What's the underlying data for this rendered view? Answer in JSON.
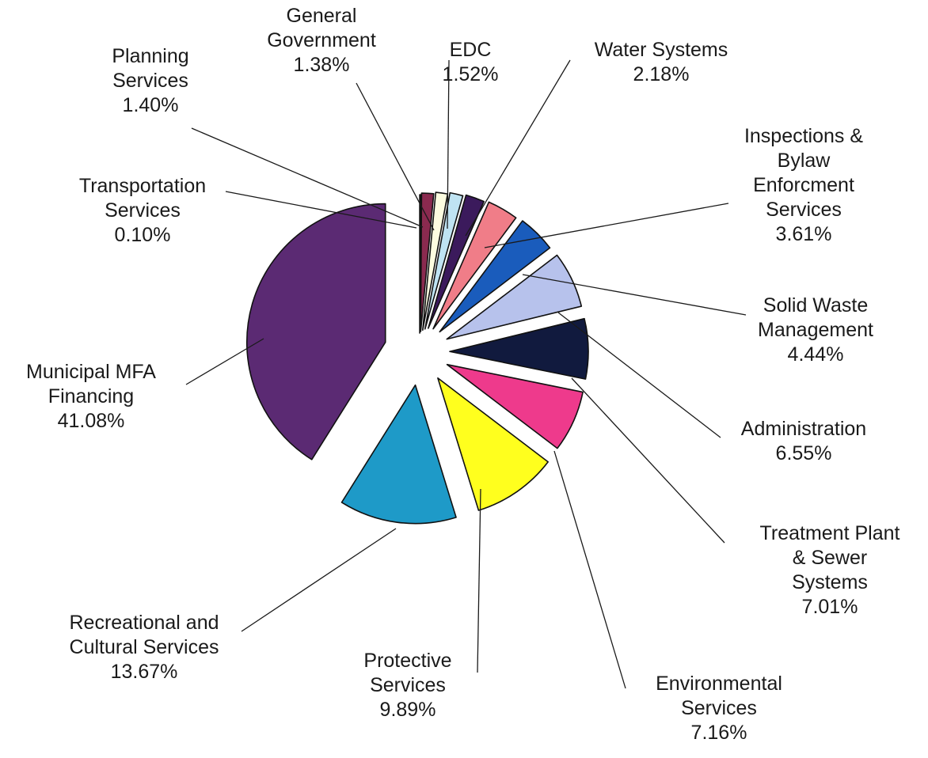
{
  "chart_data": {
    "type": "pie",
    "title": "",
    "slices": [
      {
        "label": [
          "Municipal MFA",
          "Financing"
        ],
        "value": 41.08,
        "value_label": "41.08%",
        "color": "#5b2a73"
      },
      {
        "label": [
          "Recreational and",
          "Cultural Services"
        ],
        "value": 13.67,
        "value_label": "13.67%",
        "color": "#1e9ac8"
      },
      {
        "label": [
          "Protective",
          "Services"
        ],
        "value": 9.89,
        "value_label": "9.89%",
        "color": "#ffff1e"
      },
      {
        "label": [
          "Environmental",
          "Services"
        ],
        "value": 7.16,
        "value_label": "7.16%",
        "color": "#ee3a8c"
      },
      {
        "label": [
          "Treatment Plant",
          "& Sewer",
          "Systems"
        ],
        "value": 7.01,
        "value_label": "7.01%",
        "color": "#111a3e"
      },
      {
        "label": [
          "Administration"
        ],
        "value": 6.55,
        "value_label": "6.55%",
        "color": "#b7c2ec"
      },
      {
        "label": [
          "Solid Waste",
          "Management"
        ],
        "value": 4.44,
        "value_label": "4.44%",
        "color": "#1a5cbc"
      },
      {
        "label": [
          "Inspections &",
          "Bylaw",
          "Enforcment",
          "Services"
        ],
        "value": 3.61,
        "value_label": "3.61%",
        "color": "#f07d88"
      },
      {
        "label": [
          "Water Systems"
        ],
        "value": 2.18,
        "value_label": "2.18%",
        "color": "#3b1a5c"
      },
      {
        "label": [
          "EDC"
        ],
        "value": 1.52,
        "value_label": "1.52%",
        "color": "#bfe3f2"
      },
      {
        "label": [
          "General",
          "Government"
        ],
        "value": 1.38,
        "value_label": "1.38%",
        "color": "#fcfce0"
      },
      {
        "label": [
          "Planning",
          "Services"
        ],
        "value": 1.4,
        "value_label": "1.40%",
        "color": "#8a2a4f"
      },
      {
        "label": [
          "Transportation",
          "Services"
        ],
        "value": 0.1,
        "value_label": "0.10%",
        "color": "#0d2a80"
      }
    ],
    "legend": "none (callout labels with leader lines)",
    "start_angle": "12 o'clock, counter-clockwise",
    "exploded": true
  }
}
